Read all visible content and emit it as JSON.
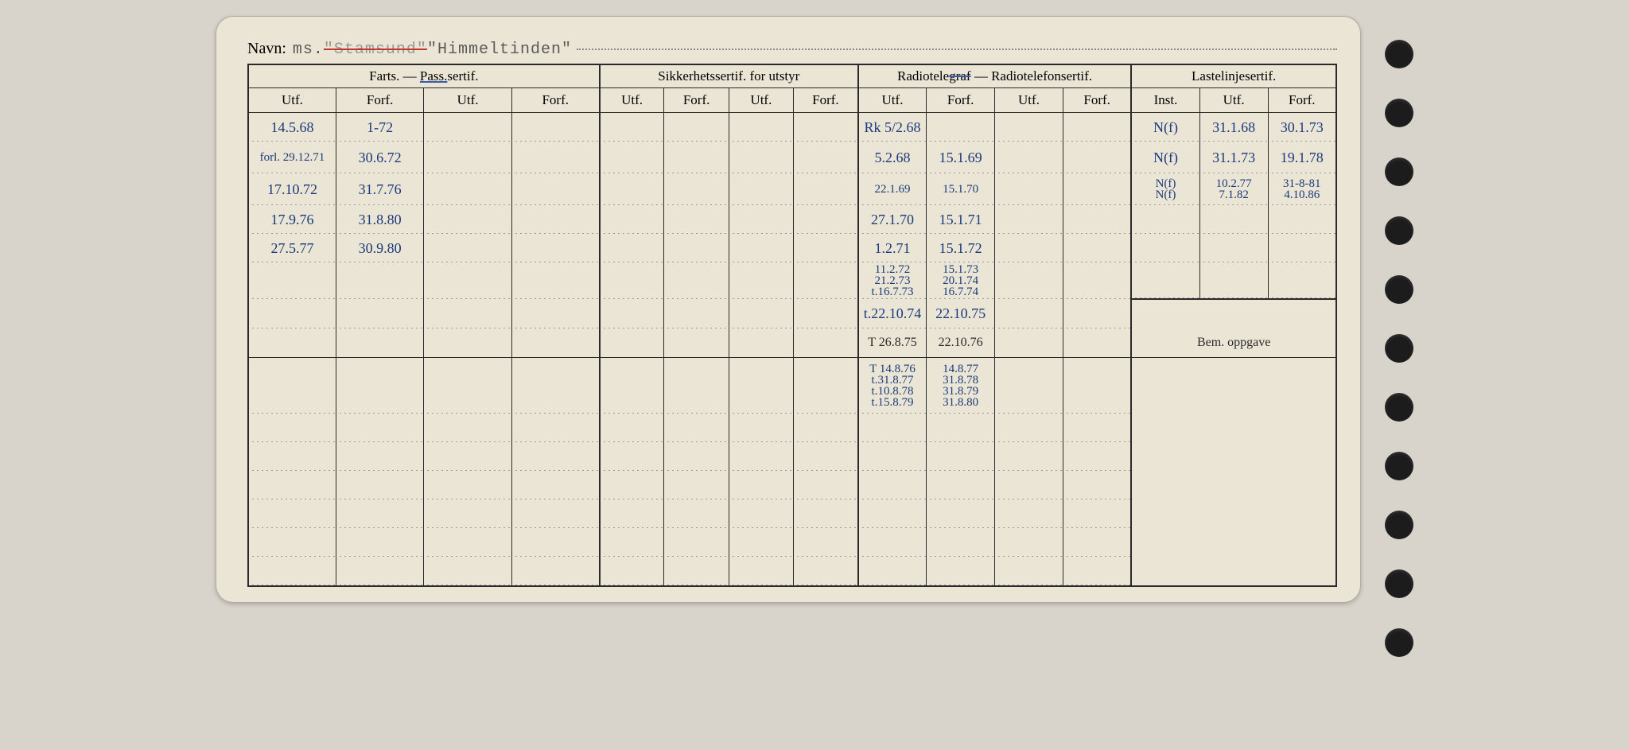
{
  "title": {
    "label": "Navn:",
    "prefix": "ms.",
    "struck": "\"Stamsund\"",
    "name": "\"Himmeltinden\""
  },
  "headers": {
    "sec1": "Farts. — ",
    "sec1_pass": "Pass.",
    "sec1_suffix": "sertif.",
    "sec2": "Sikkerhetssertif. for utstyr",
    "sec3_a": "Radiotele",
    "sec3_strike": "graf",
    "sec3_b": " — Radiotelefonsertif.",
    "sec4": "Lastelinjesertif.",
    "utf": "Utf.",
    "forf": "Forf.",
    "inst": "Inst.",
    "bem": "Bem. oppgave"
  },
  "rows": [
    {
      "a1": "14.5.68",
      "a2": "1-72",
      "c1": "Rk 5/2.68",
      "c2": "",
      "d1": "N(f)",
      "d2": "31.1.68",
      "d3": "30.1.73"
    },
    {
      "a1": "forl. 29.12.71",
      "a2": "30.6.72",
      "c1": "5.2.68",
      "c2": "15.1.69",
      "d1": "N(f)",
      "d2": "31.1.73",
      "d3": "19.1.78"
    },
    {
      "a1": "17.10.72",
      "a2": "31.7.76",
      "c1": "22.1.69",
      "c2": "15.1.70",
      "d1": "N(f)\nN(f)",
      "d2": "10.2.77\n7.1.82",
      "d3": "31-8-81\n4.10.86",
      "tight": true
    },
    {
      "a1": "17.9.76",
      "a2": "31.8.80",
      "c1": "27.1.70",
      "c2": "15.1.71"
    },
    {
      "a1": "27.5.77",
      "a2": "30.9.80",
      "c1": "1.2.71",
      "c2": "15.1.72"
    },
    {
      "c1": "11.2.72\n21.2.73\nt.16.7.73",
      "c2": "15.1.73\n20.1.74\n16.7.74",
      "tight": true
    },
    {
      "c1": "t.22.10.74",
      "c2": "22.10.75",
      "bem_top": true
    },
    {
      "c1": "T 26.8.75",
      "c2": "22.10.76",
      "bem_header": true
    },
    {
      "c1": "T 14.8.76\nt.31.8.77\nt.10.8.78\nt.15.8.79",
      "c2": "14.8.77\n31.8.78\n31.8.79\n31.8.80",
      "bigtight": true
    }
  ]
}
